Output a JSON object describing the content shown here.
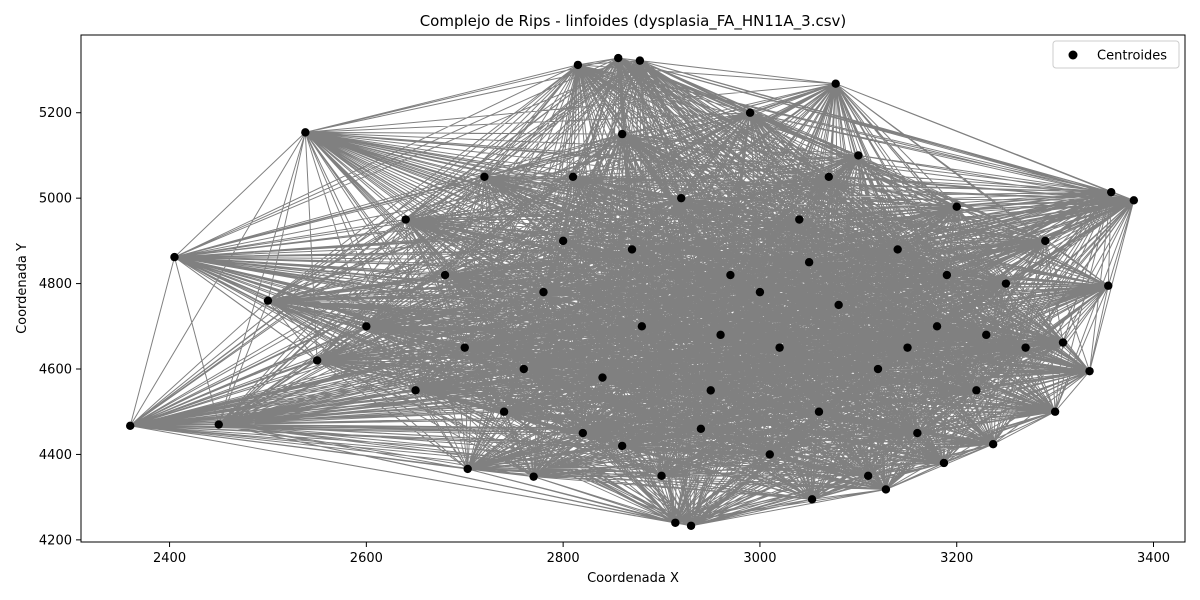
{
  "chart_data": {
    "type": "scatter",
    "title": "Complejo de Rips - linfoides (dysplasia_FA_HN11A_3.csv)",
    "xlabel": "Coordenada X",
    "ylabel": "Coordenada Y",
    "xlim": [
      2310,
      3432
    ],
    "ylim": [
      4195,
      5382
    ],
    "xticks": [
      2400,
      2600,
      2800,
      3000,
      3200,
      3400
    ],
    "yticks": [
      4200,
      4400,
      4600,
      4800,
      5000,
      5200
    ],
    "grid": false,
    "legend": {
      "location": "top-right",
      "entries": [
        "Centroides"
      ]
    },
    "colors": {
      "points": "#000000",
      "edges": "#808080"
    },
    "series": [
      {
        "name": "Centroides",
        "points": [
          [
            2360,
            4467
          ],
          [
            2405,
            4862
          ],
          [
            2538,
            5154
          ],
          [
            2815,
            5312
          ],
          [
            2856,
            5328
          ],
          [
            2878,
            5322
          ],
          [
            3077,
            5268
          ],
          [
            3357,
            5014
          ],
          [
            3380,
            4995
          ],
          [
            3354,
            4795
          ],
          [
            3335,
            4595
          ],
          [
            3308,
            4662
          ],
          [
            3237,
            4424
          ],
          [
            3187,
            4380
          ],
          [
            3128,
            4318
          ],
          [
            3053,
            4295
          ],
          [
            2930,
            4233
          ],
          [
            2914,
            4240
          ],
          [
            2770,
            4348
          ],
          [
            2703,
            4366
          ],
          [
            2640,
            4950
          ],
          [
            2600,
            4700
          ],
          [
            2680,
            4820
          ],
          [
            2720,
            5050
          ],
          [
            2760,
            4600
          ],
          [
            2800,
            4900
          ],
          [
            2820,
            4450
          ],
          [
            2860,
            5150
          ],
          [
            2880,
            4700
          ],
          [
            2900,
            4350
          ],
          [
            2920,
            5000
          ],
          [
            2950,
            4550
          ],
          [
            2970,
            4820
          ],
          [
            2990,
            5200
          ],
          [
            3010,
            4400
          ],
          [
            3020,
            4650
          ],
          [
            3040,
            4950
          ],
          [
            3060,
            4500
          ],
          [
            3080,
            4750
          ],
          [
            3100,
            5100
          ],
          [
            3120,
            4600
          ],
          [
            3140,
            4880
          ],
          [
            3160,
            4450
          ],
          [
            3180,
            4700
          ],
          [
            3200,
            4980
          ],
          [
            3220,
            4550
          ],
          [
            3250,
            4800
          ],
          [
            3270,
            4650
          ],
          [
            3290,
            4900
          ],
          [
            3300,
            4500
          ],
          [
            2650,
            4550
          ],
          [
            2700,
            4650
          ],
          [
            2740,
            4500
          ],
          [
            2780,
            4780
          ],
          [
            2840,
            4580
          ],
          [
            2870,
            4880
          ],
          [
            2960,
            4680
          ],
          [
            3000,
            4780
          ],
          [
            3150,
            4650
          ],
          [
            3230,
            4680
          ],
          [
            2450,
            4470
          ],
          [
            2550,
            4620
          ],
          [
            2500,
            4760
          ],
          [
            2860,
            4420
          ],
          [
            3050,
            4850
          ],
          [
            3110,
            4350
          ],
          [
            2940,
            4460
          ],
          [
            3190,
            4820
          ],
          [
            2810,
            5050
          ],
          [
            3070,
            5050
          ]
        ]
      }
    ]
  }
}
